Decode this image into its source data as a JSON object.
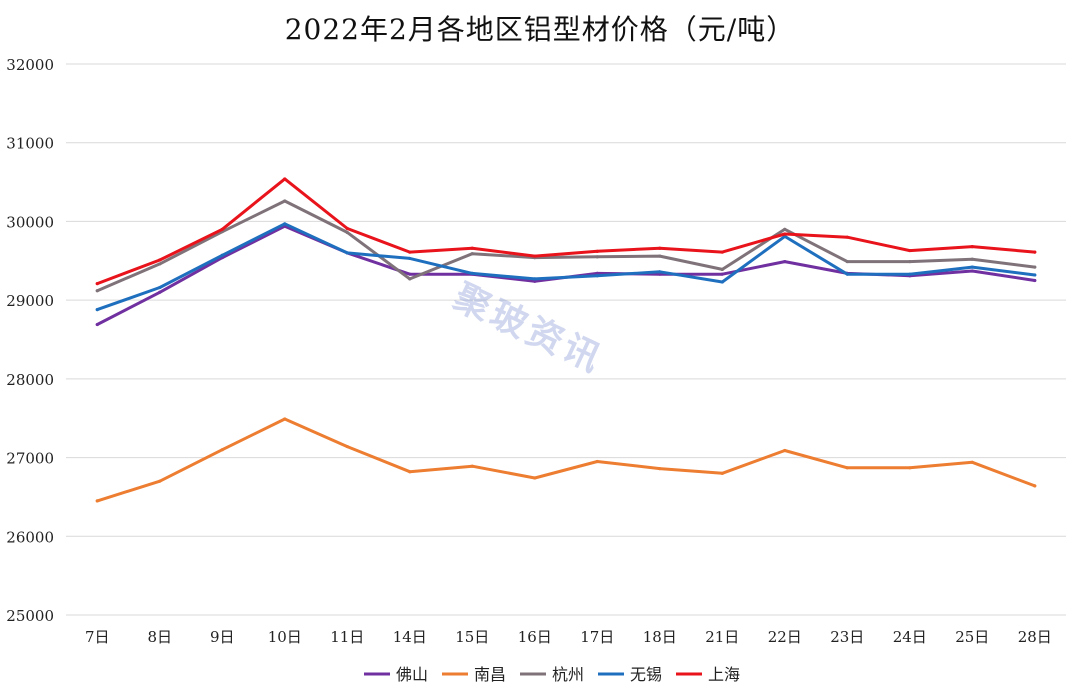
{
  "chart_data": {
    "type": "line",
    "title": "2022年2月各地区铝型材价格（元/吨）",
    "categories": [
      "7日",
      "8日",
      "9日",
      "10日",
      "11日",
      "14日",
      "15日",
      "16日",
      "17日",
      "18日",
      "21日",
      "22日",
      "23日",
      "24日",
      "25日",
      "28日"
    ],
    "ylim": [
      25000,
      32000
    ],
    "yticks": [
      25000,
      26000,
      27000,
      28000,
      29000,
      30000,
      31000,
      32000
    ],
    "grid": true,
    "legend_position": "bottom",
    "series": [
      {
        "name": "佛山",
        "color": "#7030a0",
        "values": [
          28690,
          29100,
          29540,
          29940,
          29600,
          29330,
          29330,
          29240,
          29340,
          29330,
          29330,
          29490,
          29340,
          29310,
          29370,
          29250
        ]
      },
      {
        "name": "南昌",
        "color": "#ed7d31",
        "values": [
          26450,
          26700,
          27100,
          27490,
          27140,
          26820,
          26890,
          26740,
          26950,
          26860,
          26800,
          27090,
          26870,
          26870,
          26940,
          26640
        ]
      },
      {
        "name": "杭州",
        "color": "#7f7379",
        "values": [
          29120,
          29460,
          29870,
          30260,
          29860,
          29270,
          29590,
          29540,
          29550,
          29560,
          29390,
          29900,
          29490,
          29490,
          29520,
          29420
        ]
      },
      {
        "name": "无锡",
        "color": "#1f6fbf",
        "values": [
          28880,
          29160,
          29570,
          29970,
          29600,
          29530,
          29340,
          29270,
          29310,
          29360,
          29230,
          29810,
          29330,
          29330,
          29420,
          29320
        ]
      },
      {
        "name": "上海",
        "color": "#e8131b",
        "values": [
          29210,
          29510,
          29900,
          30540,
          29910,
          29610,
          29660,
          29560,
          29620,
          29660,
          29610,
          29840,
          29800,
          29630,
          29680,
          29610
        ]
      }
    ]
  },
  "watermark": "聚玻资讯"
}
